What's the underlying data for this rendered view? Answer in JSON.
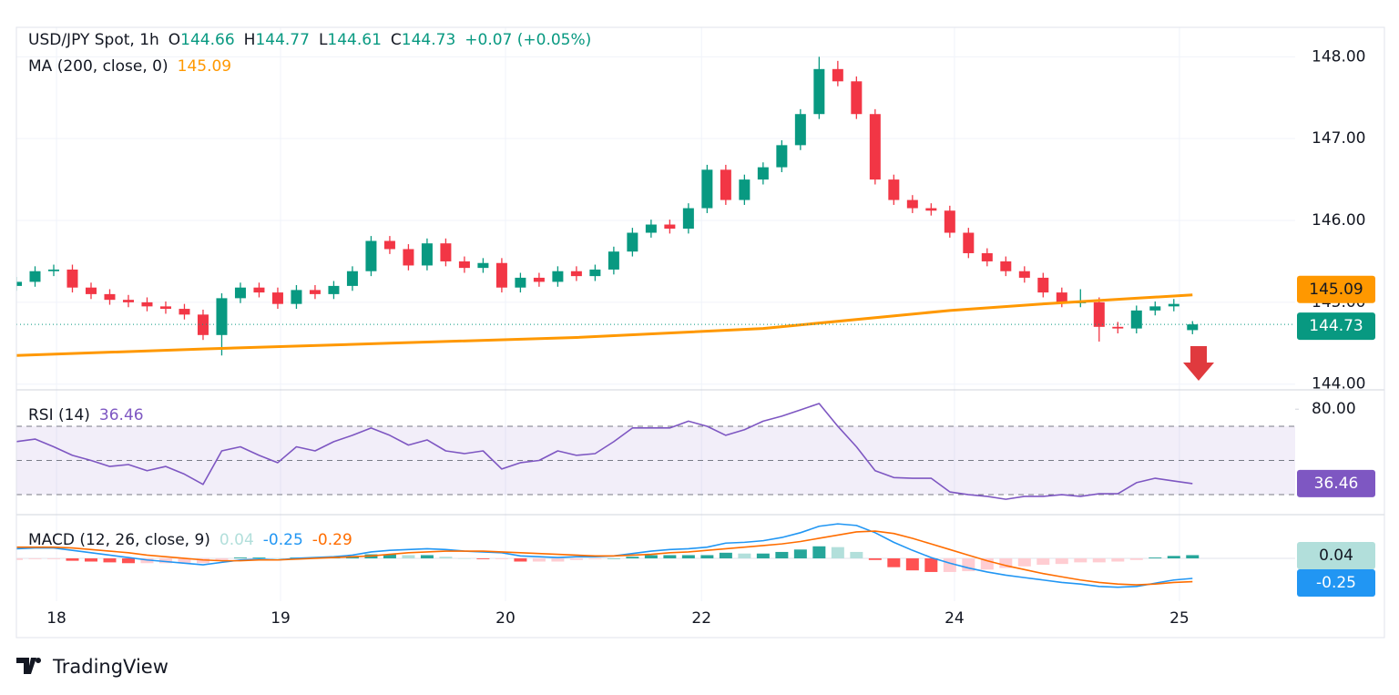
{
  "chart_data": [
    {
      "type": "candlestick",
      "title": "USD/JPY Spot, 1h",
      "change": "+0.07 (+0.05%)",
      "ohlc_labels": [
        "O",
        "H",
        "L",
        "C"
      ],
      "up_color": "#089981",
      "down_color": "#f23645",
      "grid": true,
      "x": [
        0,
        2,
        4,
        6,
        8,
        10,
        12,
        14,
        16,
        18,
        20,
        22,
        24,
        26,
        28,
        30,
        32,
        34,
        36,
        38,
        40,
        42,
        44,
        46,
        48,
        50,
        52,
        54,
        56,
        58,
        60,
        62,
        64,
        66,
        68,
        70,
        72,
        74,
        76,
        78,
        80,
        82,
        84,
        86,
        88,
        90,
        92,
        94,
        96,
        98,
        100,
        102,
        104,
        106,
        108,
        110,
        112,
        114,
        116,
        118,
        120,
        122,
        124,
        126
      ],
      "open": [
        145.2,
        145.25,
        145.38,
        145.4,
        145.18,
        145.1,
        145.03,
        145.0,
        144.95,
        144.92,
        144.85,
        144.6,
        145.05,
        145.18,
        145.12,
        144.98,
        145.15,
        145.1,
        145.2,
        145.38,
        145.75,
        145.65,
        145.45,
        145.72,
        145.5,
        145.42,
        145.48,
        145.18,
        145.3,
        145.25,
        145.38,
        145.32,
        145.4,
        145.62,
        145.85,
        145.95,
        145.9,
        146.15,
        146.62,
        146.25,
        146.5,
        146.65,
        146.92,
        147.3,
        147.85,
        147.7,
        147.3,
        146.5,
        146.25,
        146.15,
        146.12,
        145.85,
        145.6,
        145.5,
        145.38,
        145.3,
        145.12,
        145.0,
        145.0,
        144.7,
        144.68,
        144.9,
        144.95,
        144.66
      ],
      "high": [
        145.31,
        145.44,
        145.46,
        145.46,
        145.24,
        145.16,
        145.09,
        145.06,
        145.01,
        144.98,
        144.91,
        145.11,
        145.24,
        145.24,
        145.18,
        145.21,
        145.21,
        145.26,
        145.44,
        145.81,
        145.81,
        145.71,
        145.78,
        145.78,
        145.56,
        145.54,
        145.54,
        145.36,
        145.36,
        145.44,
        145.44,
        145.46,
        145.68,
        145.91,
        146.01,
        146.01,
        146.21,
        146.68,
        146.68,
        146.56,
        146.71,
        146.98,
        147.36,
        148.0,
        147.95,
        147.76,
        147.36,
        146.56,
        146.31,
        146.21,
        146.18,
        145.91,
        145.66,
        145.56,
        145.44,
        145.36,
        145.18,
        145.16,
        145.06,
        144.76,
        144.96,
        145.01,
        145.04,
        144.77
      ],
      "low": [
        145.14,
        145.19,
        145.32,
        145.12,
        145.04,
        144.97,
        144.94,
        144.89,
        144.86,
        144.79,
        144.54,
        144.35,
        144.99,
        145.06,
        144.92,
        144.92,
        145.04,
        145.04,
        145.14,
        145.32,
        145.59,
        145.39,
        145.39,
        145.44,
        145.36,
        145.36,
        145.12,
        145.12,
        145.19,
        145.19,
        145.26,
        145.26,
        145.34,
        145.56,
        145.79,
        145.84,
        145.84,
        146.09,
        146.19,
        146.19,
        146.44,
        146.59,
        146.86,
        147.24,
        147.64,
        147.24,
        146.44,
        146.19,
        146.09,
        146.06,
        145.79,
        145.54,
        145.44,
        145.32,
        145.24,
        145.06,
        144.94,
        144.94,
        144.52,
        144.62,
        144.62,
        144.84,
        144.89,
        144.61
      ],
      "close": [
        145.25,
        145.38,
        145.4,
        145.18,
        145.1,
        145.03,
        145.0,
        144.95,
        144.92,
        144.85,
        144.6,
        145.05,
        145.18,
        145.12,
        144.98,
        145.15,
        145.1,
        145.2,
        145.38,
        145.75,
        145.65,
        145.45,
        145.72,
        145.5,
        145.42,
        145.48,
        145.18,
        145.3,
        145.25,
        145.38,
        145.32,
        145.4,
        145.62,
        145.85,
        145.95,
        145.9,
        146.15,
        146.62,
        146.25,
        146.5,
        146.65,
        146.92,
        147.3,
        147.85,
        147.7,
        147.3,
        146.5,
        146.25,
        146.15,
        146.12,
        145.85,
        145.6,
        145.5,
        145.38,
        145.3,
        145.12,
        145.0,
        145.0,
        144.7,
        144.68,
        144.9,
        144.95,
        144.98,
        144.73
      ],
      "ma": {
        "name": "MA (200, close, 0)",
        "color": "#ff9800",
        "x": [
          0,
          20,
          40,
          60,
          80,
          100,
          110,
          120,
          126
        ],
        "values": [
          144.35,
          144.43,
          144.5,
          144.57,
          144.68,
          144.9,
          144.98,
          145.05,
          145.09
        ]
      },
      "xlim": [
        0,
        137
      ],
      "ylim": [
        143.93,
        148.36
      ],
      "yticks": [
        {
          "value": 144,
          "label": "144.00"
        },
        {
          "value": 145,
          "label": "145.00"
        },
        {
          "value": 146,
          "label": "146.00"
        },
        {
          "value": 147,
          "label": "147.00"
        },
        {
          "value": 148,
          "label": "148.00"
        }
      ]
    },
    {
      "type": "line",
      "name": "RSI (14)",
      "color": "#7e57c2",
      "x": [
        0,
        2,
        4,
        6,
        8,
        10,
        12,
        14,
        16,
        18,
        20,
        22,
        24,
        26,
        28,
        30,
        32,
        34,
        36,
        38,
        40,
        42,
        44,
        46,
        48,
        50,
        52,
        54,
        56,
        58,
        60,
        62,
        64,
        66,
        68,
        70,
        72,
        74,
        76,
        78,
        80,
        82,
        84,
        86,
        88,
        90,
        92,
        94,
        96,
        98,
        100,
        102,
        104,
        106,
        108,
        110,
        112,
        114,
        116,
        118,
        120,
        122,
        124,
        126
      ],
      "values": [
        61,
        62.5,
        58,
        53,
        50,
        46.5,
        47.6,
        44,
        46.5,
        42,
        36,
        55.6,
        58,
        53,
        48.7,
        58,
        55.6,
        61,
        64.7,
        69,
        64.7,
        59,
        62,
        55.6,
        54,
        55.6,
        45,
        48.7,
        50,
        55.6,
        53,
        54,
        61,
        69,
        69,
        69,
        73,
        70,
        64.7,
        68,
        73,
        75.9,
        79.6,
        83.3,
        70,
        58,
        44,
        40,
        39.6,
        39.6,
        31.6,
        30,
        29,
        27.3,
        29,
        29,
        30,
        29,
        30.5,
        30.5,
        37,
        39.6,
        38,
        36.46
      ],
      "bands": [
        70,
        50,
        30
      ],
      "xlim": [
        0,
        137
      ],
      "ylim": [
        18.3,
        91.3
      ],
      "yticks": [
        {
          "value": 80,
          "label": "80.00"
        }
      ]
    },
    {
      "type": "macd",
      "name": "MACD (12, 26, close, 9)",
      "macd_color": "#2196f3",
      "signal_color": "#ff6d00",
      "hist_colors": [
        "#26a69a",
        "#b2dfdb",
        "#ffcdd2",
        "#ff5252"
      ],
      "x": [
        0,
        2,
        4,
        6,
        8,
        10,
        12,
        14,
        16,
        18,
        20,
        22,
        24,
        26,
        28,
        30,
        32,
        34,
        36,
        38,
        40,
        42,
        44,
        46,
        48,
        50,
        52,
        54,
        56,
        58,
        60,
        62,
        64,
        66,
        68,
        70,
        72,
        74,
        76,
        78,
        80,
        82,
        84,
        86,
        88,
        90,
        92,
        94,
        96,
        98,
        100,
        102,
        104,
        106,
        108,
        110,
        112,
        114,
        116,
        118,
        120,
        122,
        124,
        126
      ],
      "hist": [
        -0.02,
        -0.01,
        -0.01,
        -0.03,
        -0.04,
        -0.05,
        -0.06,
        -0.06,
        -0.06,
        -0.06,
        -0.06,
        -0.02,
        0.01,
        0.01,
        0.0,
        0.01,
        0.01,
        0.01,
        0.02,
        0.05,
        0.05,
        0.04,
        0.04,
        0.02,
        0.0,
        -0.01,
        -0.01,
        -0.04,
        -0.04,
        -0.04,
        -0.02,
        -0.01,
        0.0,
        0.02,
        0.04,
        0.04,
        0.04,
        0.04,
        0.07,
        0.06,
        0.06,
        0.08,
        0.11,
        0.15,
        0.14,
        0.08,
        -0.02,
        -0.11,
        -0.15,
        -0.17,
        -0.17,
        -0.16,
        -0.14,
        -0.12,
        -0.1,
        -0.08,
        -0.07,
        -0.05,
        -0.05,
        -0.04,
        -0.02,
        0.01,
        0.03,
        0.04
      ],
      "macd": [
        0.12,
        0.13,
        0.13,
        0.1,
        0.07,
        0.04,
        0.01,
        -0.02,
        -0.04,
        -0.06,
        -0.08,
        -0.05,
        -0.02,
        -0.01,
        -0.02,
        0.0,
        0.01,
        0.02,
        0.04,
        0.08,
        0.1,
        0.11,
        0.12,
        0.11,
        0.09,
        0.08,
        0.07,
        0.03,
        0.02,
        0.01,
        0.02,
        0.02,
        0.03,
        0.06,
        0.09,
        0.11,
        0.12,
        0.14,
        0.19,
        0.2,
        0.22,
        0.26,
        0.32,
        0.4,
        0.43,
        0.41,
        0.32,
        0.2,
        0.1,
        0.01,
        -0.06,
        -0.12,
        -0.17,
        -0.21,
        -0.24,
        -0.27,
        -0.3,
        -0.32,
        -0.35,
        -0.36,
        -0.35,
        -0.31,
        -0.27,
        -0.25
      ],
      "signal": [
        0.14,
        0.14,
        0.14,
        0.13,
        0.11,
        0.09,
        0.07,
        0.04,
        0.02,
        0.0,
        -0.02,
        -0.03,
        -0.03,
        -0.02,
        -0.02,
        -0.01,
        0.0,
        0.01,
        0.02,
        0.03,
        0.05,
        0.07,
        0.08,
        0.09,
        0.09,
        0.09,
        0.08,
        0.07,
        0.06,
        0.05,
        0.04,
        0.03,
        0.03,
        0.04,
        0.05,
        0.07,
        0.08,
        0.1,
        0.12,
        0.14,
        0.16,
        0.18,
        0.21,
        0.25,
        0.29,
        0.33,
        0.34,
        0.31,
        0.25,
        0.18,
        0.11,
        0.04,
        -0.03,
        -0.09,
        -0.14,
        -0.19,
        -0.23,
        -0.27,
        -0.3,
        -0.32,
        -0.33,
        -0.32,
        -0.3,
        -0.29
      ],
      "xlim": [
        0,
        137
      ],
      "ylim": [
        -0.534,
        0.545
      ],
      "xticks": [
        {
          "value": 4.3,
          "label": "18"
        },
        {
          "value": 28.3,
          "label": "19"
        },
        {
          "value": 52.4,
          "label": "20"
        },
        {
          "value": 73.4,
          "label": "22"
        },
        {
          "value": 100.5,
          "label": "24"
        },
        {
          "value": 124.6,
          "label": "25"
        }
      ]
    }
  ],
  "footer": {
    "brand": "TradingView"
  }
}
